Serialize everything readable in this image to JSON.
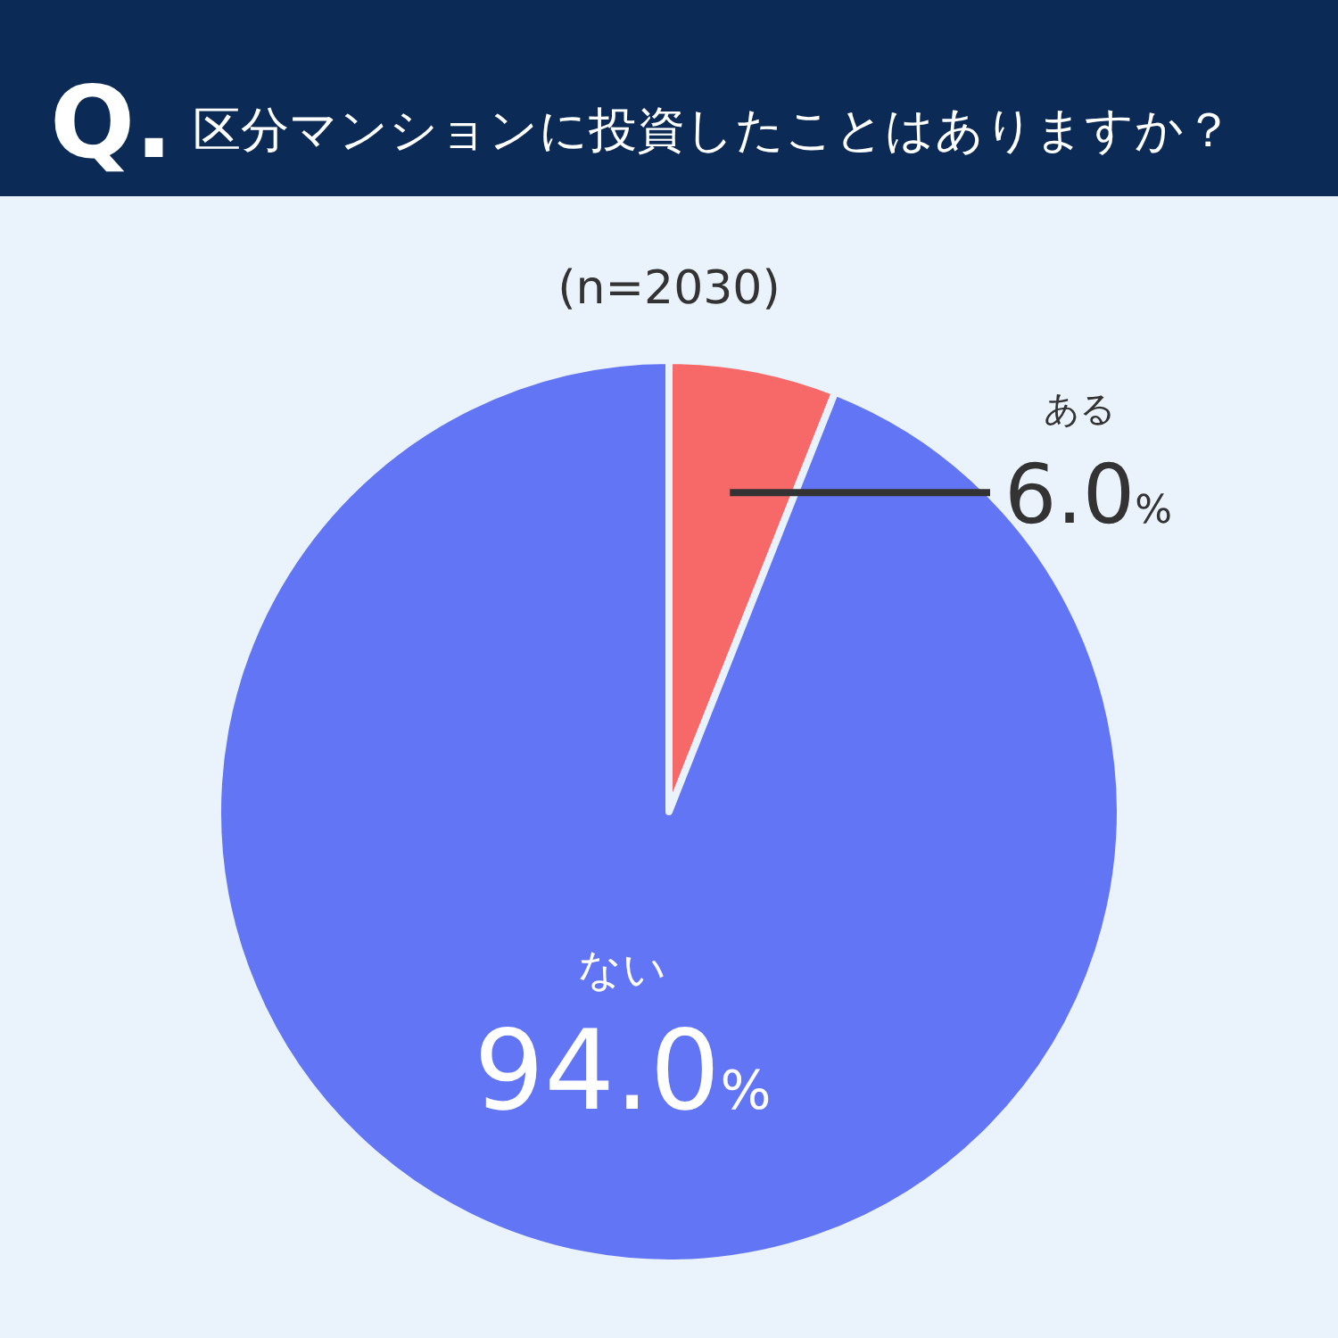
{
  "chart_data": {
    "type": "pie",
    "title": "区分マンションに投資したことはありますか？",
    "subtitle": "(n=2030)",
    "annotations": [
      "Q."
    ],
    "categories": [
      "ある",
      "ない"
    ],
    "values": [
      6.0,
      94.0
    ],
    "colors": [
      "#f76868",
      "#6275f5"
    ],
    "value_labels": [
      "6.0%",
      "94.0%"
    ]
  }
}
